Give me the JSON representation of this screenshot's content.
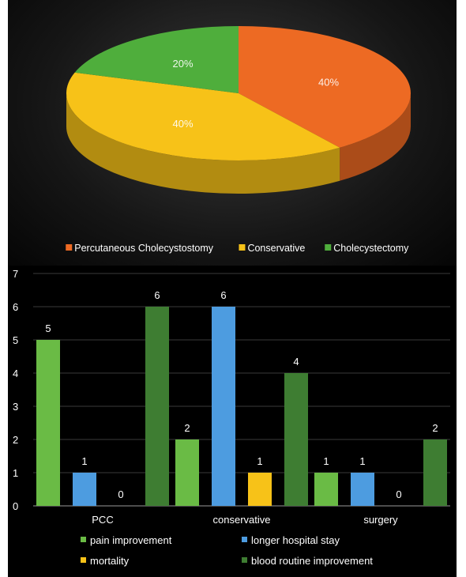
{
  "chart_data": [
    {
      "type": "pie",
      "title": "",
      "slices": [
        {
          "label": "Percutaneous Cholecystostomy",
          "value": 40,
          "display": "40%",
          "color": "#ed6a23"
        },
        {
          "label": "Conservative",
          "value": 40,
          "display": "40%",
          "color": "#f7c218"
        },
        {
          "label": "Cholecystectomy",
          "value": 20,
          "display": "20%",
          "color": "#4fae3c"
        }
      ],
      "legend_position": "bottom"
    },
    {
      "type": "bar",
      "title": "",
      "categories": [
        "PCC",
        "conservative",
        "surgery"
      ],
      "series": [
        {
          "name": "pain improvement",
          "values": [
            5,
            2,
            1
          ],
          "color": "#6abb45"
        },
        {
          "name": "longer hospital stay",
          "values": [
            1,
            6,
            1
          ],
          "color": "#4d9ce0"
        },
        {
          "name": "mortality",
          "values": [
            0,
            1,
            0
          ],
          "color": "#f7c218"
        },
        {
          "name": "blood routine improvement",
          "values": [
            6,
            4,
            2
          ],
          "color": "#3e7d32"
        }
      ],
      "ylim": [
        0,
        7
      ],
      "yticks": [
        "0",
        "1",
        "2",
        "3",
        "4",
        "5",
        "6",
        "7"
      ],
      "grid": true,
      "legend_position": "bottom"
    }
  ]
}
